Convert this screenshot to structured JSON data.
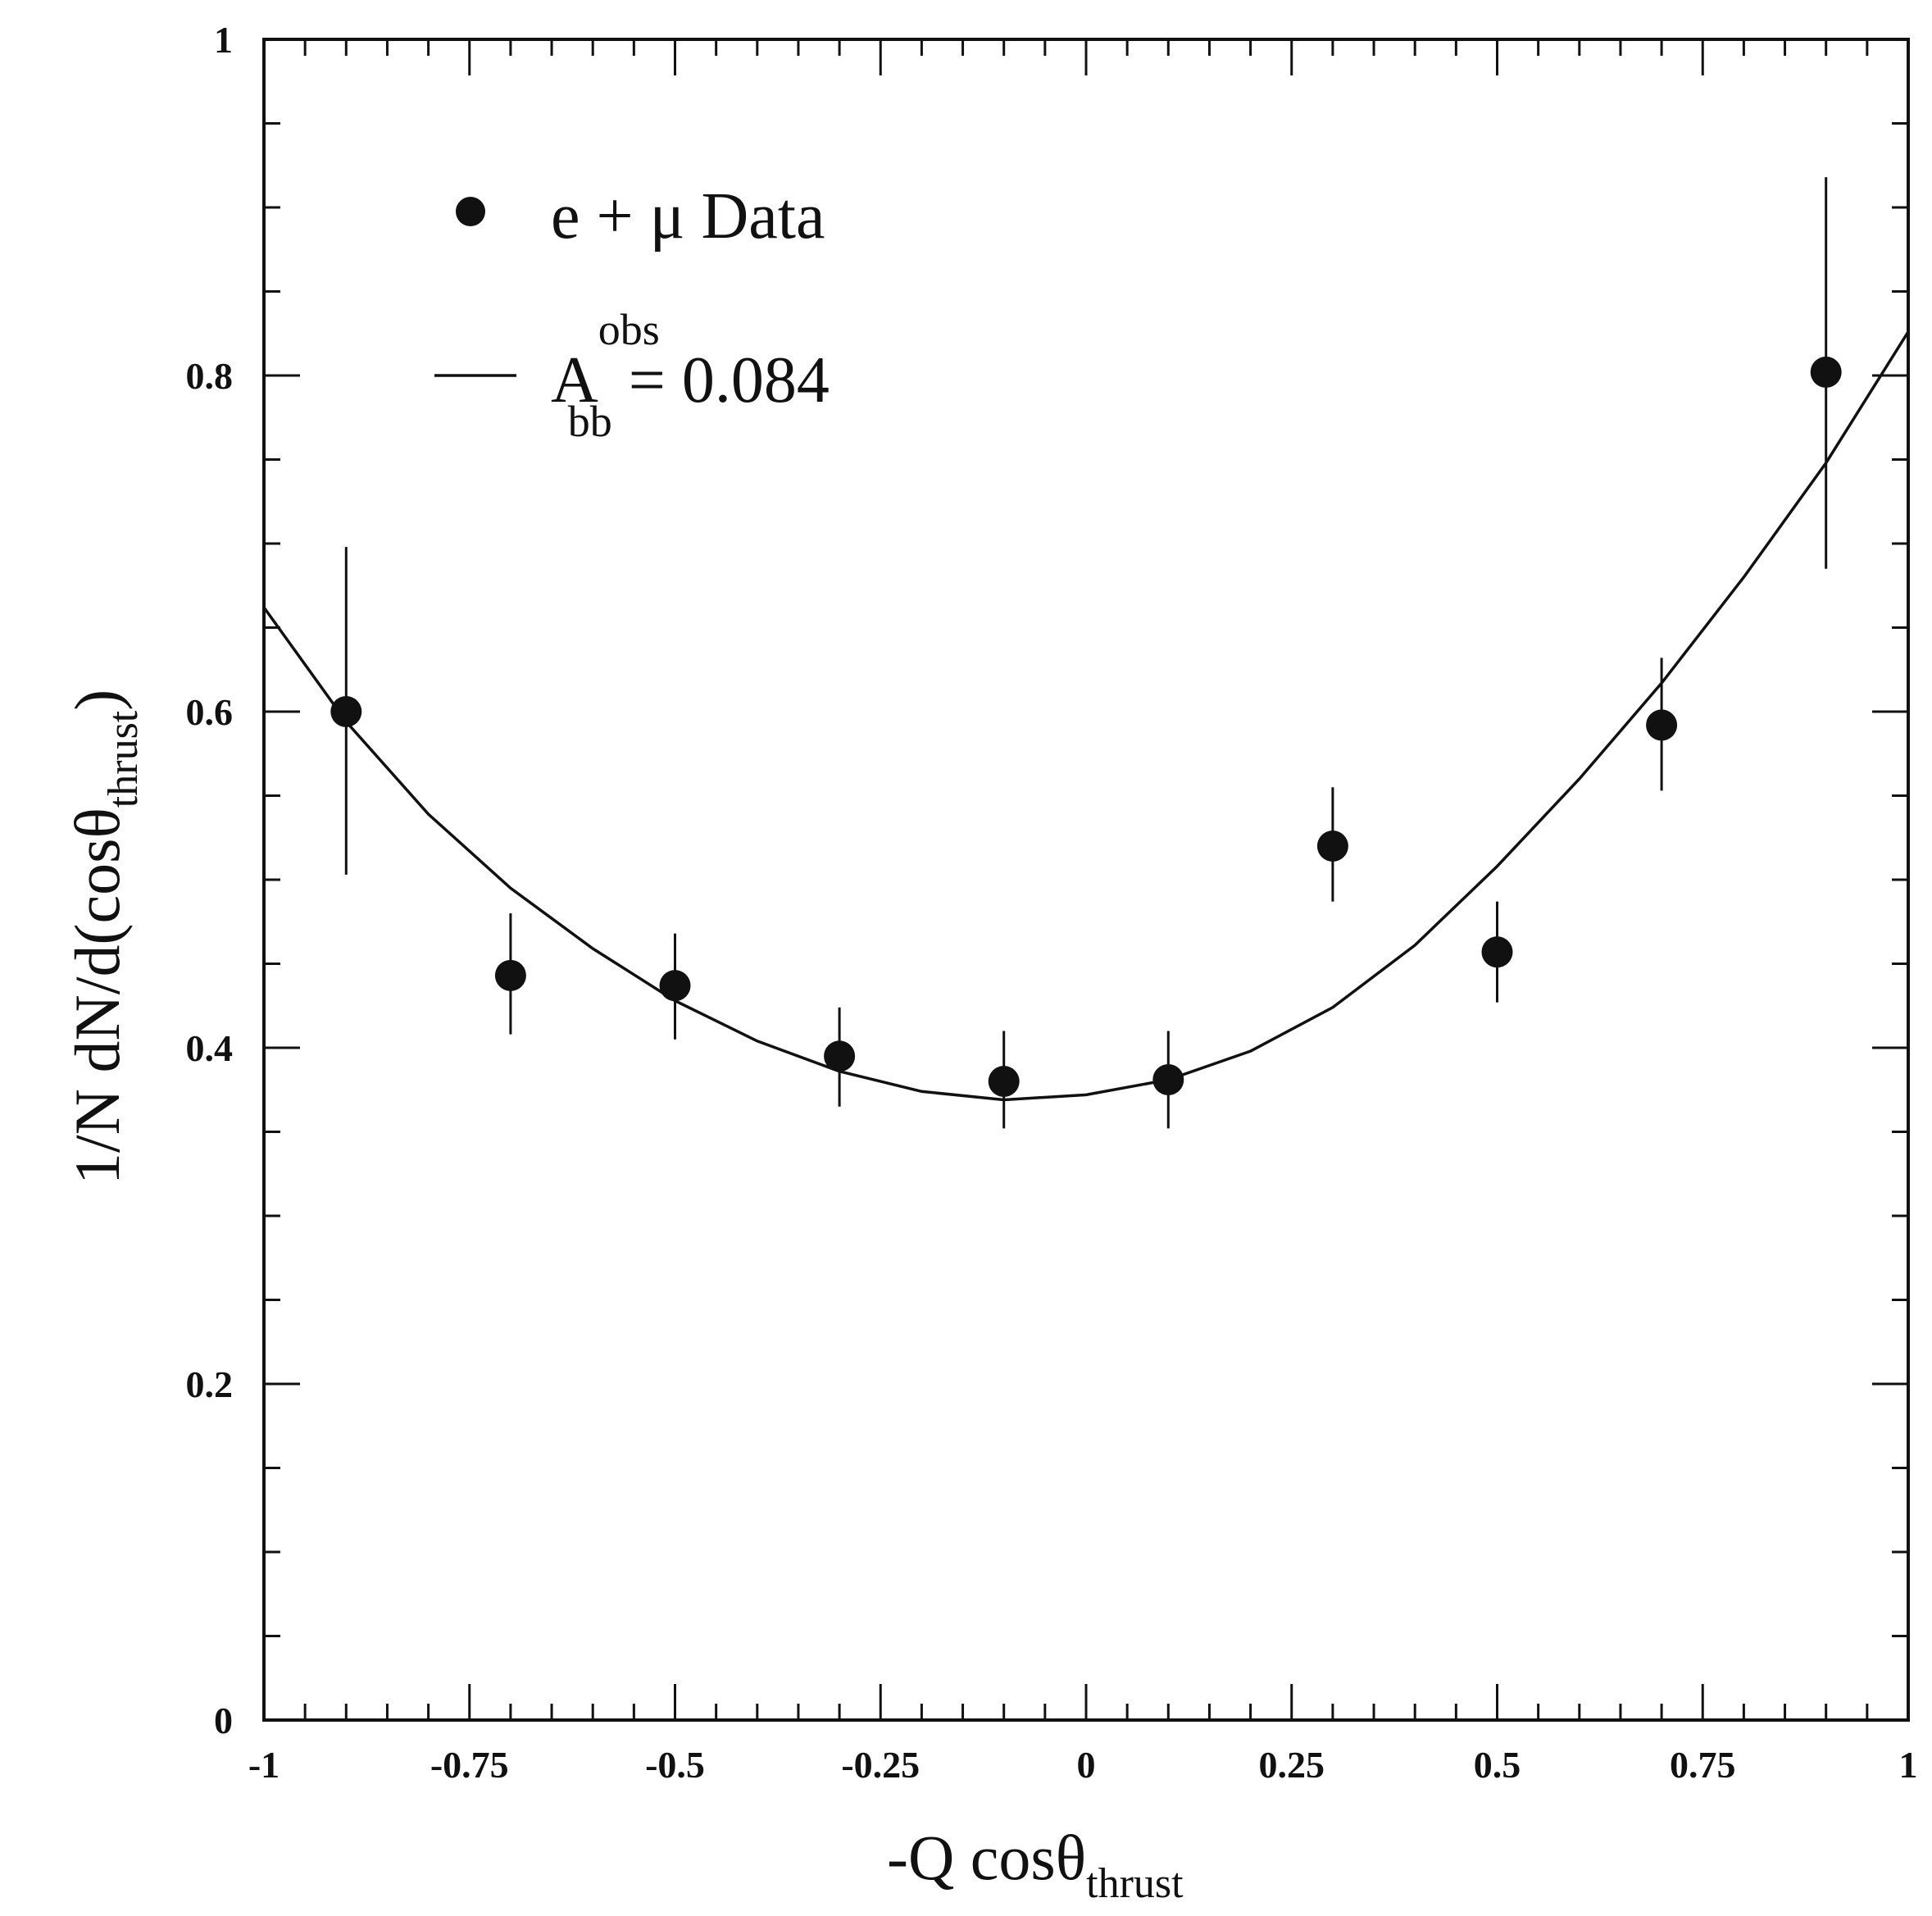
{
  "chart_data": {
    "type": "scatter",
    "xlabel": {
      "main": "-Q cosθ",
      "sub": "thrust"
    },
    "ylabel": {
      "main": "1/N dN/d(cosθ",
      "sub": "thrust",
      "close": ")"
    },
    "xlim": [
      -1,
      1
    ],
    "ylim": [
      0,
      1
    ],
    "x_ticks": [
      {
        "value": -1,
        "label": "-1"
      },
      {
        "value": -0.75,
        "label": "-0.75"
      },
      {
        "value": -0.5,
        "label": "-0.5"
      },
      {
        "value": -0.25,
        "label": "-0.25"
      },
      {
        "value": 0,
        "label": "0"
      },
      {
        "value": 0.25,
        "label": "0.25"
      },
      {
        "value": 0.5,
        "label": "0.5"
      },
      {
        "value": 0.75,
        "label": "0.75"
      },
      {
        "value": 1,
        "label": "1"
      }
    ],
    "y_ticks": [
      {
        "value": 0,
        "label": "0"
      },
      {
        "value": 0.2,
        "label": "0.2"
      },
      {
        "value": 0.4,
        "label": "0.4"
      },
      {
        "value": 0.6,
        "label": "0.6"
      },
      {
        "value": 0.8,
        "label": "0.8"
      },
      {
        "value": 1,
        "label": "1"
      }
    ],
    "legend": {
      "placement": "top-left",
      "data_label": "e + μ Data",
      "fit_label": {
        "main": "A",
        "sup": "obs",
        "sub": "bb",
        "rest": " = 0.084"
      }
    },
    "series": [
      {
        "kind": "points",
        "x": [
          -0.9,
          -0.7,
          -0.5,
          -0.3,
          -0.1,
          0.1,
          0.3,
          0.5,
          0.7,
          0.9
        ],
        "y": [
          0.6,
          0.443,
          0.437,
          0.395,
          0.38,
          0.381,
          0.52,
          0.457,
          0.592,
          0.802
        ],
        "y_low": [
          0.503,
          0.408,
          0.405,
          0.365,
          0.352,
          0.352,
          0.487,
          0.427,
          0.553,
          0.685
        ],
        "y_high": [
          0.698,
          0.48,
          0.468,
          0.424,
          0.41,
          0.41,
          0.555,
          0.487,
          0.632,
          0.918
        ]
      },
      {
        "kind": "fit",
        "x": [
          -1.0,
          -0.9,
          -0.8,
          -0.7,
          -0.6,
          -0.5,
          -0.4,
          -0.3,
          -0.2,
          -0.1,
          0.0,
          0.1,
          0.2,
          0.3,
          0.4,
          0.5,
          0.6,
          0.7,
          0.8,
          0.9,
          1.0
        ],
        "y": [
          0.662,
          0.594,
          0.539,
          0.495,
          0.459,
          0.428,
          0.404,
          0.386,
          0.374,
          0.369,
          0.372,
          0.381,
          0.398,
          0.424,
          0.461,
          0.508,
          0.56,
          0.617,
          0.68,
          0.748,
          0.826
        ]
      }
    ]
  }
}
